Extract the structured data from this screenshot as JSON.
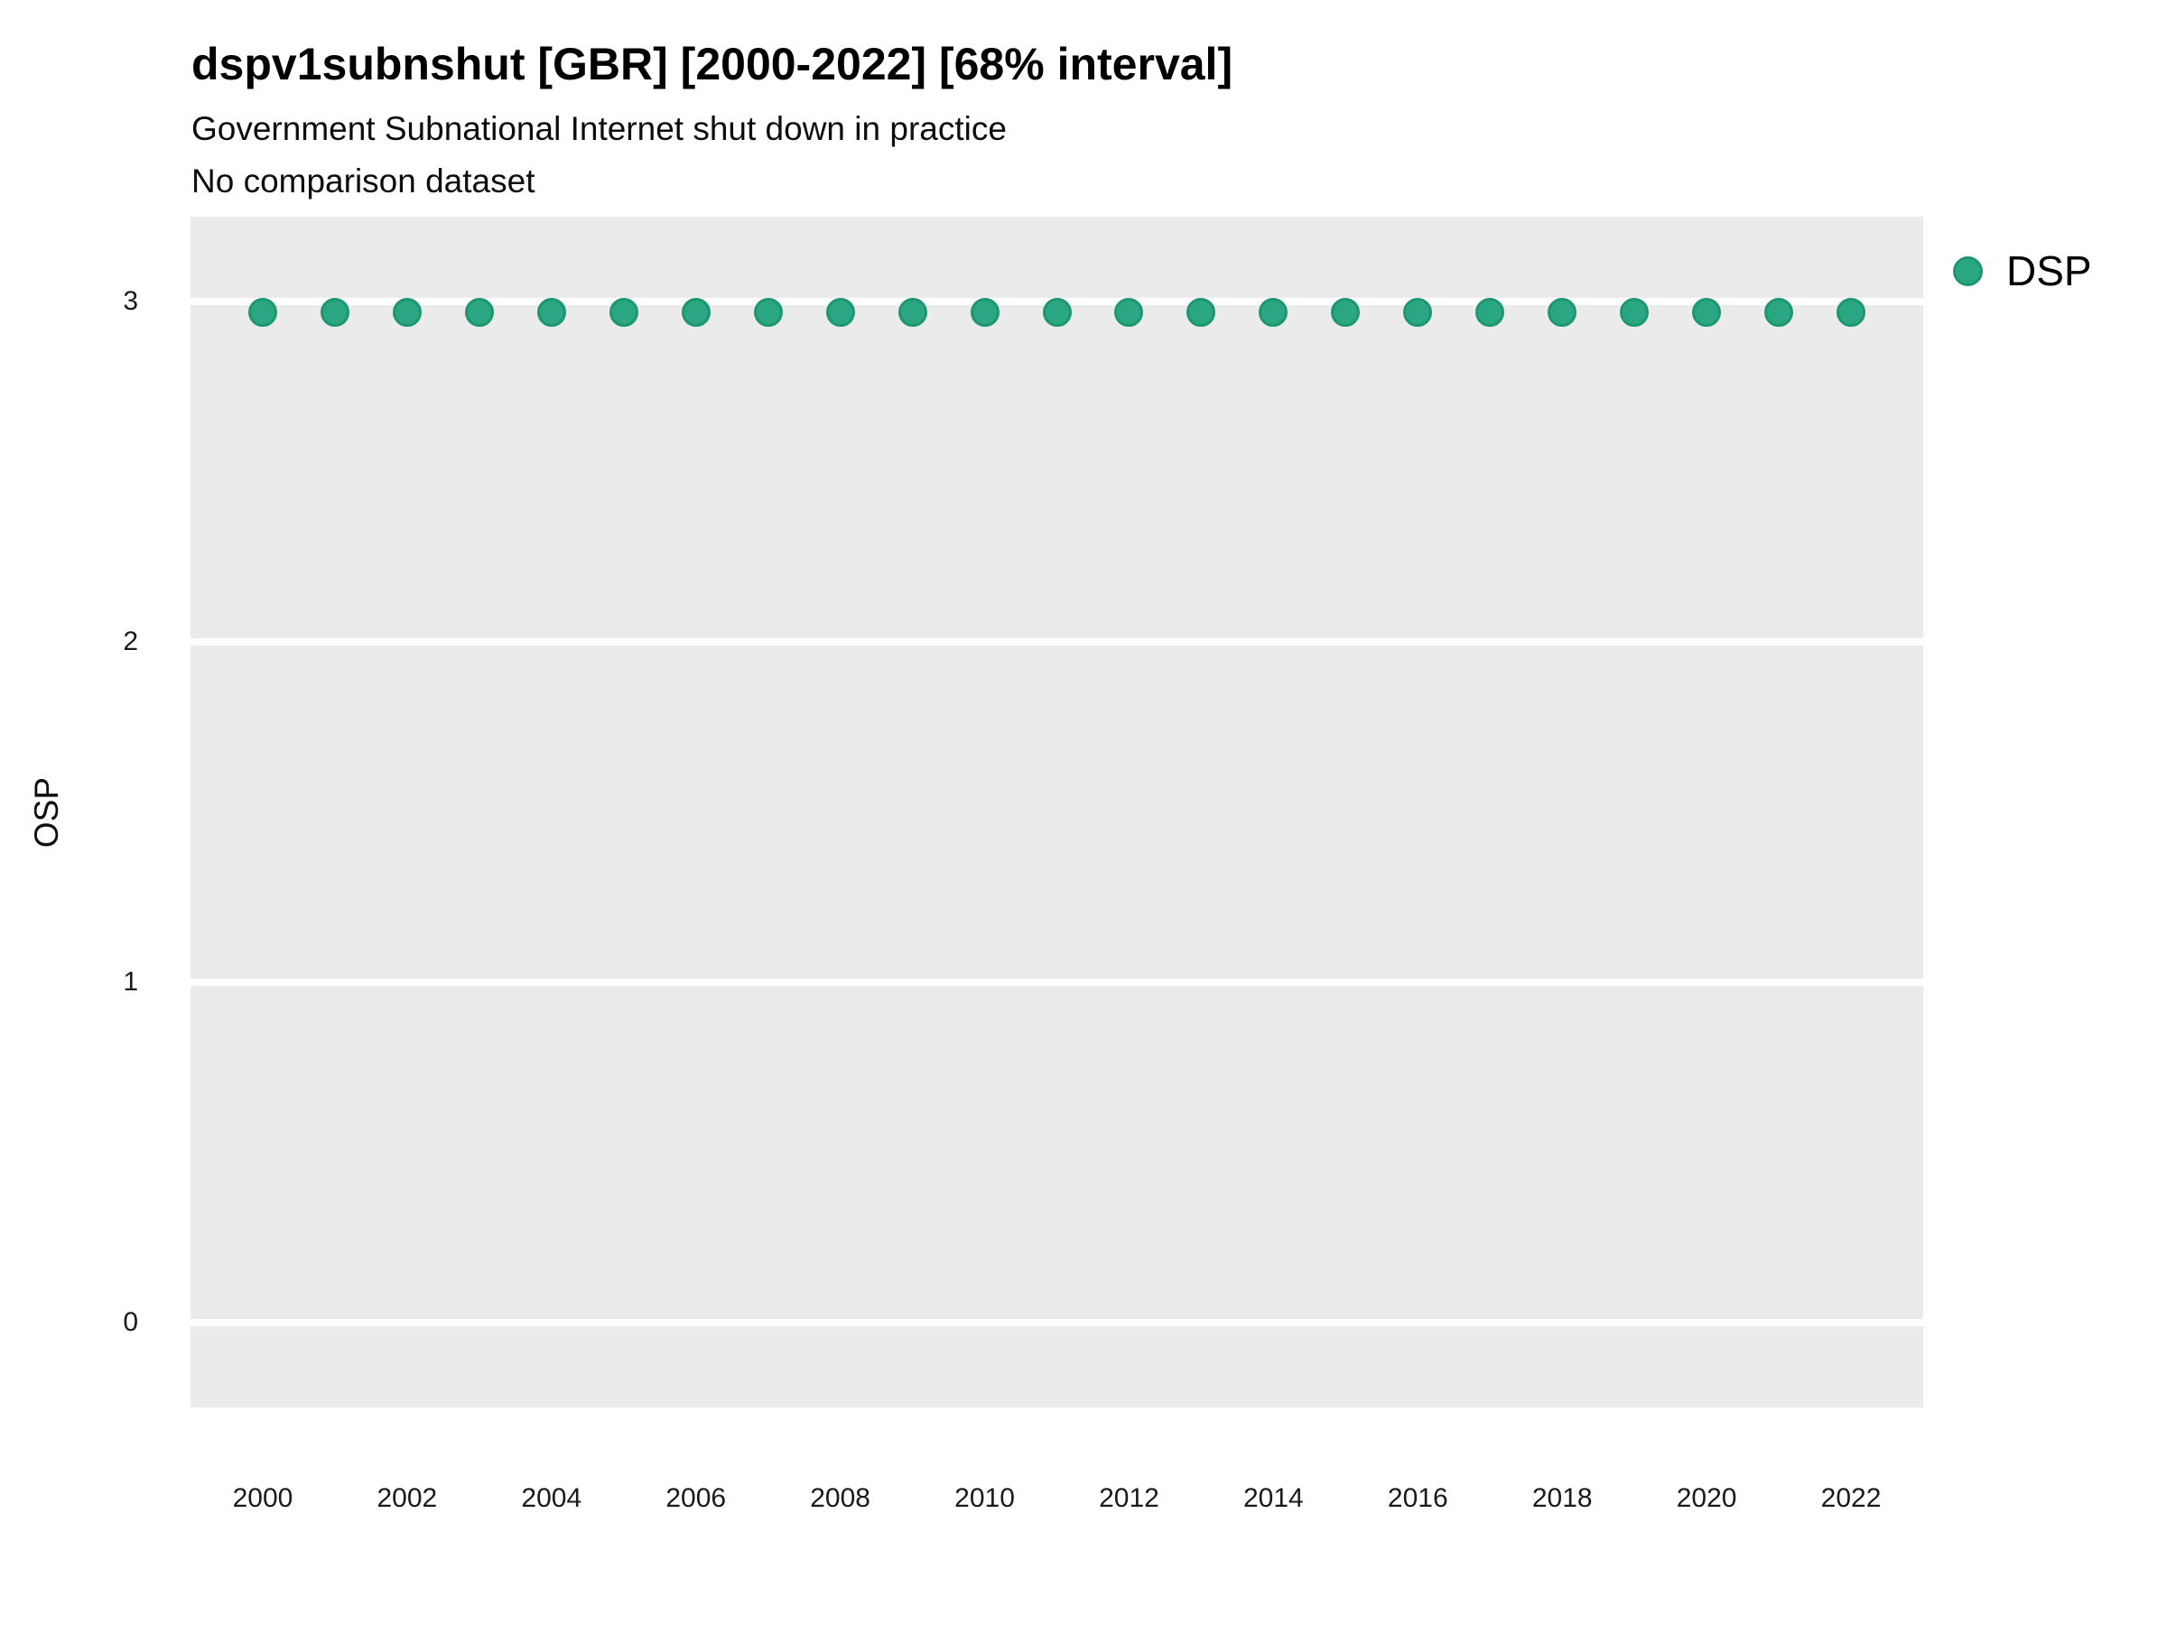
{
  "colors": {
    "point_fill": "#2AA682",
    "point_stroke": "#1E9670",
    "plot_background": "#EBEBEB",
    "gridline": "#FFFFFF",
    "text": "#000000"
  },
  "chart_data": {
    "type": "scatter",
    "title": "dspv1subnshut [GBR] [2000-2022] [68% interval]",
    "subtitle": "Government Subnational Internet shut down in practice",
    "comparison_note": "No comparison dataset",
    "xlabel": "",
    "ylabel": "OSP",
    "xlim": [
      1999,
      2023
    ],
    "ylim": [
      -0.25,
      3.25
    ],
    "xticks": [
      2000,
      2002,
      2004,
      2006,
      2008,
      2010,
      2012,
      2014,
      2016,
      2018,
      2020,
      2022
    ],
    "yticks": [
      0,
      1,
      2,
      3
    ],
    "grid": "horizontal major white gridlines on gray panel, no vertical gridlines",
    "legend_position": "right-top",
    "x": [
      2000,
      2001,
      2002,
      2003,
      2004,
      2005,
      2006,
      2007,
      2008,
      2009,
      2010,
      2011,
      2012,
      2013,
      2014,
      2015,
      2016,
      2017,
      2018,
      2019,
      2020,
      2021,
      2022
    ],
    "series": [
      {
        "name": "DSP",
        "marker": "circle",
        "values": [
          2.97,
          2.97,
          2.97,
          2.97,
          2.97,
          2.97,
          2.97,
          2.97,
          2.97,
          2.97,
          2.97,
          2.97,
          2.97,
          2.97,
          2.97,
          2.97,
          2.97,
          2.97,
          2.97,
          2.97,
          2.97,
          2.97,
          2.97
        ]
      }
    ],
    "legend": {
      "items": [
        {
          "label": "DSP"
        }
      ]
    }
  }
}
